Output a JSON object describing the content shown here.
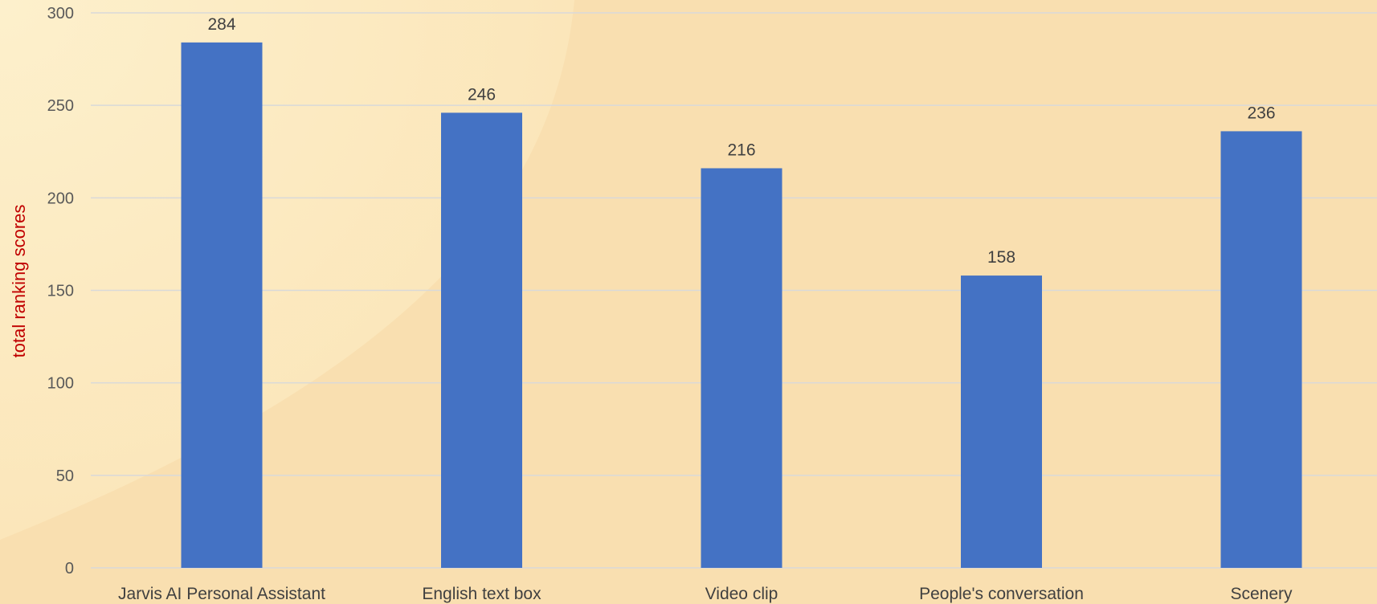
{
  "chart_data": {
    "type": "bar",
    "title": "",
    "xlabel": "",
    "ylabel": "total ranking scores",
    "categories": [
      "Jarvis AI Personal Assistant",
      "English text box",
      "Video clip",
      "People's conversation",
      "Scenery"
    ],
    "values": [
      284,
      246,
      216,
      158,
      236
    ],
    "yticks": [
      0,
      50,
      100,
      150,
      200,
      250,
      300
    ],
    "ylim": [
      0,
      300
    ],
    "grid": true,
    "legend": "none",
    "data_labels": true
  },
  "colors": {
    "bar": "#4472C4",
    "background": "#F9DFB0",
    "background_highlight": "#FCEAC0",
    "gridline": "#D9D9D9",
    "ylabel": "#C00000"
  }
}
